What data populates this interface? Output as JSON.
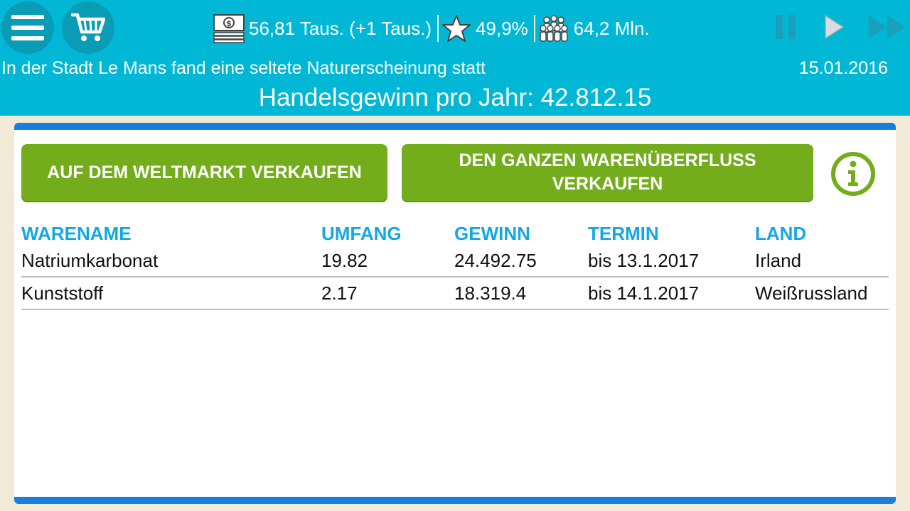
{
  "stats": {
    "money": "56,81 Taus. (+1 Taus.)",
    "rating": "49,9%",
    "population": "64,2 Mln."
  },
  "ticker": "In der Stadt Le Mans fand eine seltete Naturerscheinung statt",
  "date": "15.01.2016",
  "profit": "Handelsgewinn pro Jahr: 42.812.15",
  "buttons": {
    "sell_world_market": "AUF DEM WELTMARKT VERKAUFEN",
    "sell_all_surplus": "DEN GANZEN WARENÜBERFLUSS VERKAUFEN"
  },
  "table": {
    "headers": [
      "WARENAME",
      "UMFANG",
      "GEWINN",
      "TERMIN",
      "LAND"
    ],
    "rows": [
      [
        "Natriumkarbonat",
        "19.82",
        "24.492.75",
        "bis 13.1.2017",
        "Irland"
      ],
      [
        "Kunststoff",
        "2.17",
        "18.319.4",
        "bis 14.1.2017",
        "Weißrussland"
      ]
    ]
  },
  "colors": {
    "header_bg": "#00b8d6",
    "button_green": "#74ad1c",
    "accent_blue": "#1a7fdc",
    "column_header": "#13a7e6"
  },
  "icons": {
    "menu": "hamburger-menu-icon",
    "cart": "shopping-cart-icon",
    "money": "banknote-icon",
    "rating": "star-icon",
    "population": "people-icon",
    "pause": "pause-icon",
    "play": "play-icon",
    "fast_forward": "fast-forward-icon",
    "info": "info-icon"
  }
}
